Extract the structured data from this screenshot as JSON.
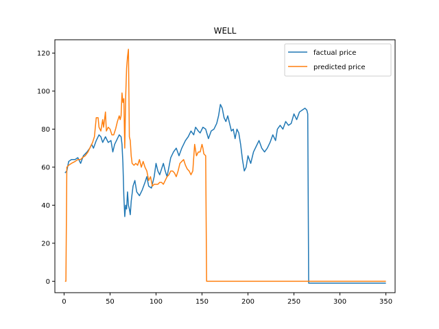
{
  "chart_data": {
    "type": "line",
    "title": "WELL",
    "xlabel": "",
    "ylabel": "",
    "xlim": [
      -10,
      360
    ],
    "ylim": [
      -6,
      127
    ],
    "xticks": [
      0,
      50,
      100,
      150,
      200,
      250,
      300,
      350
    ],
    "yticks": [
      0,
      20,
      40,
      60,
      80,
      100,
      120
    ],
    "grid": false,
    "legend_position": "top-right",
    "series": [
      {
        "name": "factual price",
        "color": "#1f77b4",
        "points": [
          [
            1,
            57
          ],
          [
            3,
            58
          ],
          [
            5,
            63
          ],
          [
            8,
            64
          ],
          [
            12,
            64
          ],
          [
            15,
            65
          ],
          [
            18,
            62
          ],
          [
            21,
            66
          ],
          [
            25,
            68
          ],
          [
            28,
            70
          ],
          [
            30,
            72
          ],
          [
            32,
            70
          ],
          [
            35,
            74
          ],
          [
            38,
            77
          ],
          [
            40,
            76
          ],
          [
            42,
            73
          ],
          [
            45,
            76
          ],
          [
            48,
            73
          ],
          [
            51,
            74
          ],
          [
            53,
            68
          ],
          [
            55,
            72
          ],
          [
            57,
            74
          ],
          [
            60,
            77
          ],
          [
            62,
            76
          ],
          [
            63,
            72
          ],
          [
            64,
            62
          ],
          [
            65,
            45
          ],
          [
            66,
            34
          ],
          [
            67,
            40
          ],
          [
            68,
            38
          ],
          [
            69,
            47
          ],
          [
            70,
            40
          ],
          [
            71,
            38
          ],
          [
            72,
            35
          ],
          [
            73,
            42
          ],
          [
            75,
            50
          ],
          [
            77,
            53
          ],
          [
            79,
            47
          ],
          [
            82,
            45
          ],
          [
            85,
            48
          ],
          [
            88,
            52
          ],
          [
            90,
            55
          ],
          [
            92,
            50
          ],
          [
            95,
            49
          ],
          [
            98,
            55
          ],
          [
            100,
            62
          ],
          [
            102,
            58
          ],
          [
            104,
            56
          ],
          [
            106,
            59
          ],
          [
            108,
            62
          ],
          [
            110,
            58
          ],
          [
            112,
            55
          ],
          [
            114,
            60
          ],
          [
            116,
            65
          ],
          [
            119,
            68
          ],
          [
            122,
            70
          ],
          [
            125,
            66
          ],
          [
            128,
            70
          ],
          [
            132,
            74
          ],
          [
            135,
            76
          ],
          [
            138,
            79
          ],
          [
            141,
            77
          ],
          [
            143,
            81
          ],
          [
            146,
            79
          ],
          [
            148,
            78
          ],
          [
            151,
            81
          ],
          [
            154,
            80
          ],
          [
            157,
            75
          ],
          [
            160,
            79
          ],
          [
            163,
            80
          ],
          [
            166,
            83
          ],
          [
            168,
            87
          ],
          [
            170,
            93
          ],
          [
            172,
            91
          ],
          [
            174,
            86
          ],
          [
            176,
            84
          ],
          [
            178,
            87
          ],
          [
            180,
            83
          ],
          [
            182,
            79
          ],
          [
            184,
            80
          ],
          [
            186,
            75
          ],
          [
            188,
            80
          ],
          [
            190,
            78
          ],
          [
            192,
            72
          ],
          [
            194,
            64
          ],
          [
            196,
            58
          ],
          [
            198,
            60
          ],
          [
            200,
            66
          ],
          [
            203,
            62
          ],
          [
            206,
            68
          ],
          [
            209,
            71
          ],
          [
            212,
            74
          ],
          [
            215,
            70
          ],
          [
            218,
            68
          ],
          [
            221,
            70
          ],
          [
            224,
            73
          ],
          [
            227,
            77
          ],
          [
            230,
            74
          ],
          [
            232,
            80
          ],
          [
            235,
            82
          ],
          [
            238,
            80
          ],
          [
            241,
            84
          ],
          [
            244,
            82
          ],
          [
            247,
            83
          ],
          [
            250,
            88
          ],
          [
            253,
            85
          ],
          [
            256,
            89
          ],
          [
            259,
            90
          ],
          [
            262,
            91
          ],
          [
            264,
            90
          ],
          [
            265,
            88
          ],
          [
            266,
            -1
          ],
          [
            350,
            -1
          ]
        ]
      },
      {
        "name": "predicted price",
        "color": "#ff7f0e",
        "points": [
          [
            1,
            0
          ],
          [
            2,
            0
          ],
          [
            3,
            60
          ],
          [
            5,
            61
          ],
          [
            8,
            62
          ],
          [
            12,
            63
          ],
          [
            15,
            64
          ],
          [
            18,
            64
          ],
          [
            20,
            65
          ],
          [
            23,
            66
          ],
          [
            26,
            68
          ],
          [
            29,
            71
          ],
          [
            31,
            73
          ],
          [
            33,
            76
          ],
          [
            35,
            86
          ],
          [
            37,
            86
          ],
          [
            38,
            81
          ],
          [
            40,
            79
          ],
          [
            42,
            85
          ],
          [
            43,
            81
          ],
          [
            44,
            85
          ],
          [
            45,
            89
          ],
          [
            46,
            79
          ],
          [
            48,
            81
          ],
          [
            50,
            80
          ],
          [
            52,
            77
          ],
          [
            54,
            77
          ],
          [
            56,
            80
          ],
          [
            58,
            84
          ],
          [
            60,
            87
          ],
          [
            61,
            85
          ],
          [
            62,
            87
          ],
          [
            63,
            99
          ],
          [
            64,
            94
          ],
          [
            65,
            96
          ],
          [
            66,
            70
          ],
          [
            67,
            97
          ],
          [
            68,
            112
          ],
          [
            69,
            118
          ],
          [
            70,
            122
          ],
          [
            71,
            76
          ],
          [
            72,
            74
          ],
          [
            73,
            66
          ],
          [
            74,
            62
          ],
          [
            76,
            61
          ],
          [
            78,
            62
          ],
          [
            80,
            61
          ],
          [
            82,
            64
          ],
          [
            84,
            60
          ],
          [
            86,
            63
          ],
          [
            88,
            60
          ],
          [
            90,
            58
          ],
          [
            92,
            53
          ],
          [
            94,
            55
          ],
          [
            96,
            50
          ],
          [
            98,
            51
          ],
          [
            100,
            51
          ],
          [
            102,
            51
          ],
          [
            104,
            52
          ],
          [
            106,
            52
          ],
          [
            108,
            51
          ],
          [
            110,
            53
          ],
          [
            112,
            55
          ],
          [
            114,
            56
          ],
          [
            116,
            58
          ],
          [
            118,
            58
          ],
          [
            120,
            57
          ],
          [
            122,
            55
          ],
          [
            124,
            58
          ],
          [
            126,
            62
          ],
          [
            128,
            63
          ],
          [
            130,
            64
          ],
          [
            132,
            61
          ],
          [
            134,
            59
          ],
          [
            136,
            58
          ],
          [
            138,
            56
          ],
          [
            140,
            58
          ],
          [
            142,
            72
          ],
          [
            144,
            66
          ],
          [
            146,
            68
          ],
          [
            148,
            68
          ],
          [
            150,
            72
          ],
          [
            151,
            70
          ],
          [
            152,
            67
          ],
          [
            154,
            66
          ],
          [
            155,
            0
          ],
          [
            350,
            0
          ]
        ]
      }
    ]
  }
}
